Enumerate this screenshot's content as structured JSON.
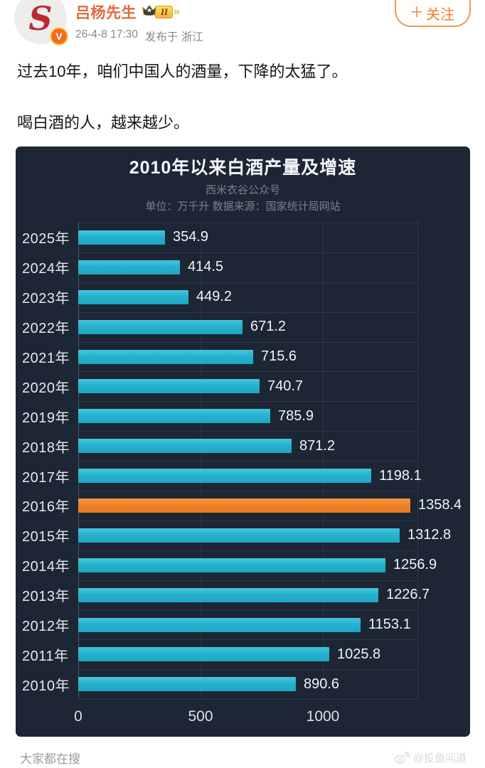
{
  "post": {
    "author": "吕杨先生",
    "avatar_letter": "S",
    "verified_badge": "V",
    "vip": {
      "level": "II",
      "chevron": "»"
    },
    "timestamp": "26-4-8 17:30",
    "location": "发布于 浙江",
    "follow": {
      "plus": "＋",
      "label": "关注"
    },
    "body_line1": "过去10年，咱们中国人的酒量，下降的太猛了。",
    "body_line2": "喝白酒的人，越来越少。"
  },
  "chart_data": {
    "type": "bar",
    "orientation": "horizontal",
    "title": "2010年以来白酒产量及增速",
    "subtitle": "西米衣谷公众号",
    "source_note": "单位：万千升  数据来源：国家统计局网站",
    "unit": "万千升",
    "categories": [
      "2025年",
      "2024年",
      "2023年",
      "2022年",
      "2021年",
      "2020年",
      "2019年",
      "2018年",
      "2017年",
      "2016年",
      "2015年",
      "2014年",
      "2013年",
      "2012年",
      "2011年",
      "2010年"
    ],
    "values": [
      354.9,
      414.5,
      449.2,
      671.2,
      715.6,
      740.7,
      785.9,
      871.2,
      1198.1,
      1358.4,
      1312.8,
      1256.9,
      1226.7,
      1153.1,
      1025.8,
      890.6
    ],
    "highlight_category": "2016年",
    "x_ticks": [
      0,
      500,
      1000
    ],
    "xlim": [
      0,
      1390
    ],
    "grid": true,
    "legend": false,
    "bar_color": "#29b7d3",
    "highlight_color": "#ee8530",
    "background": "#1d2634"
  },
  "footer": {
    "search_label": "大家都在搜",
    "watermark": "@投鱼问道"
  }
}
